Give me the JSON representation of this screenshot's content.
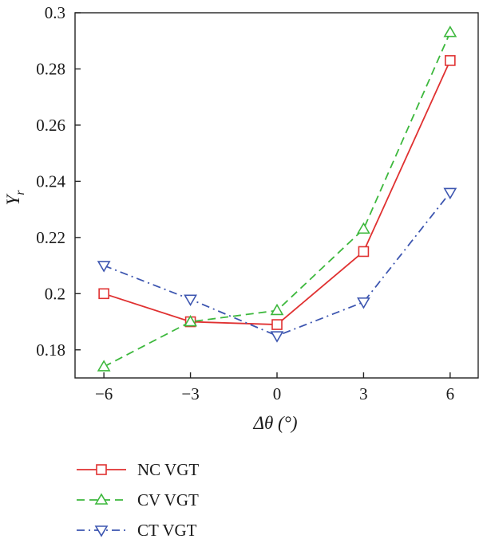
{
  "chart_data": {
    "type": "line",
    "xlabel": "Δθ (°)",
    "ylabel": "Yr",
    "ylabel_main": "Y",
    "ylabel_sub": "r",
    "x": [
      -6,
      -3,
      0,
      3,
      6
    ],
    "xticks": [
      "−6",
      "−3",
      "0",
      "3",
      "6"
    ],
    "yticks": [
      "0.18",
      "0.2",
      "0.22",
      "0.24",
      "0.26",
      "0.28",
      "0.3"
    ],
    "xlim": [
      -7,
      7
    ],
    "ylim": [
      0.17,
      0.3
    ],
    "grid": false,
    "legend_position": "bottom-left",
    "series": [
      {
        "name": "NC VGT",
        "values": [
          0.2,
          0.19,
          0.189,
          0.215,
          0.283
        ],
        "color": "#e03131",
        "line": "solid",
        "marker": "square"
      },
      {
        "name": "CV VGT",
        "values": [
          0.174,
          0.19,
          0.194,
          0.223,
          0.293
        ],
        "color": "#3db83d",
        "line": "dashed",
        "marker": "triangle-up"
      },
      {
        "name": "CT VGT",
        "values": [
          0.21,
          0.198,
          0.185,
          0.197,
          0.236
        ],
        "color": "#3d56b0",
        "line": "dashdot",
        "marker": "triangle-down"
      }
    ]
  }
}
